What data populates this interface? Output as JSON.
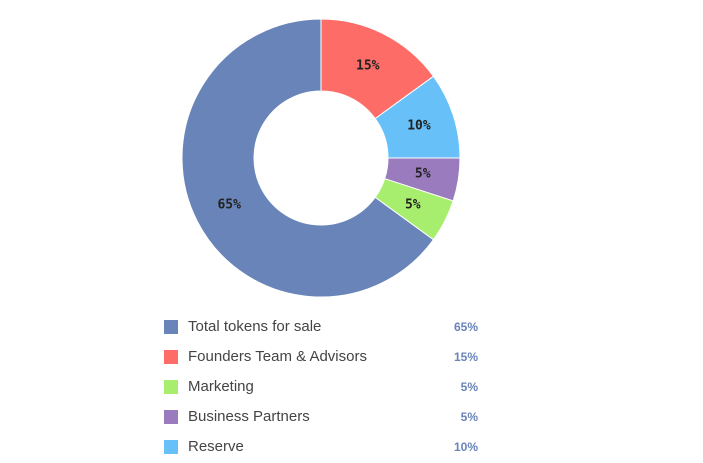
{
  "chart_data": {
    "type": "pie",
    "categories": [
      "Total tokens for sale",
      "Founders Team & Advisors",
      "Marketing",
      "Business Partners",
      "Reserve"
    ],
    "values": [
      65,
      15,
      5,
      5,
      10
    ],
    "value_labels": [
      "65%",
      "15%",
      "5%",
      "5%",
      "10%"
    ],
    "colors": [
      "#6884b8",
      "#fd6c67",
      "#a8ee6e",
      "#9a7bbe",
      "#67c1f8"
    ]
  }
}
